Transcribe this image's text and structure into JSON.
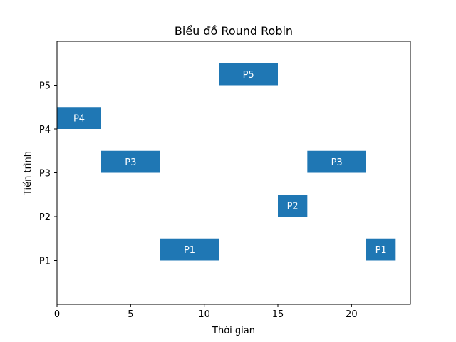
{
  "chart_data": {
    "type": "bar",
    "orientation": "horizontal-gantt",
    "title": "Biểu đồ Round Robin",
    "xlabel": "Thời gian",
    "ylabel": "Tiến trình",
    "xlim": [
      0,
      24
    ],
    "ylim": [
      0,
      6
    ],
    "xticks": [
      0,
      5,
      10,
      15,
      20
    ],
    "categories": [
      "P1",
      "P2",
      "P3",
      "P4",
      "P5"
    ],
    "bar_color": "#1f77b4",
    "bar_text_color": "#ffffff",
    "grid": false,
    "segments": [
      {
        "process": "P4",
        "start": 0,
        "end": 3,
        "label": "P4"
      },
      {
        "process": "P3",
        "start": 3,
        "end": 7,
        "label": "P3"
      },
      {
        "process": "P1",
        "start": 7,
        "end": 11,
        "label": "P1"
      },
      {
        "process": "P5",
        "start": 11,
        "end": 15,
        "label": "P5"
      },
      {
        "process": "P2",
        "start": 15,
        "end": 17,
        "label": "P2"
      },
      {
        "process": "P3",
        "start": 17,
        "end": 21,
        "label": "P3"
      },
      {
        "process": "P1",
        "start": 21,
        "end": 23,
        "label": "P1"
      }
    ]
  }
}
